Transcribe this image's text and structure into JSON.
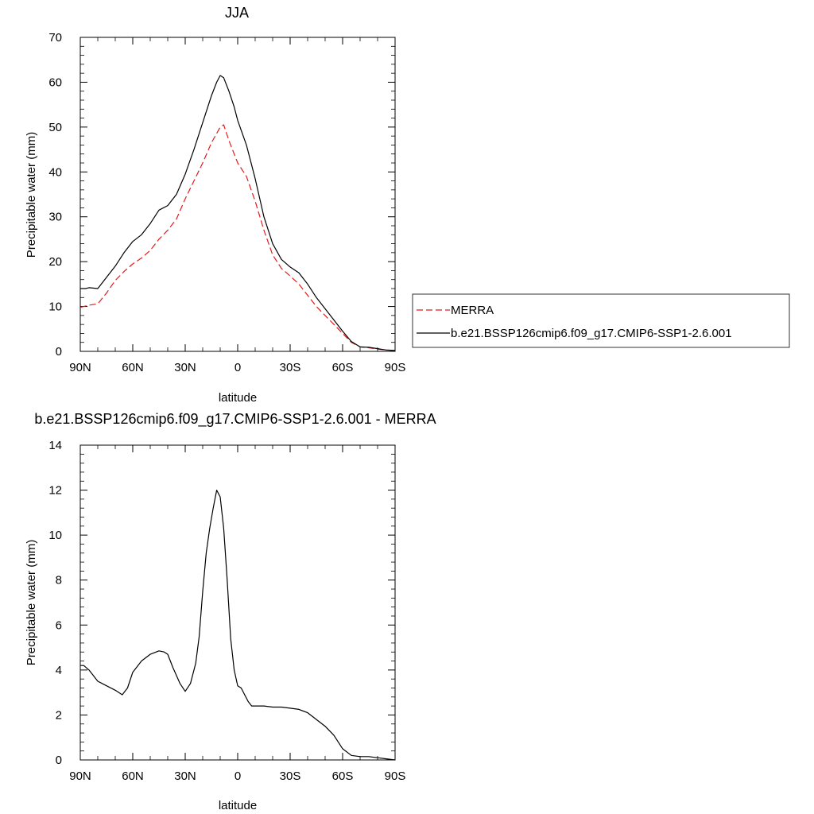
{
  "chart_data": [
    {
      "type": "line",
      "title": "JJA",
      "xlabel": "latitude",
      "ylabel": "Precipitable water (mm)",
      "xlim": [
        90,
        -90
      ],
      "ylim": [
        0,
        70
      ],
      "x_ticks": [
        90,
        60,
        30,
        0,
        -30,
        -60,
        -90
      ],
      "x_tick_labels": [
        "90N",
        "60N",
        "30N",
        "0",
        "30S",
        "60S",
        "90S"
      ],
      "y_ticks": [
        0,
        10,
        20,
        30,
        40,
        50,
        60,
        70
      ],
      "y_tick_labels": [
        "0",
        "10",
        "20",
        "30",
        "40",
        "50",
        "60",
        "70"
      ],
      "grid": false,
      "legend": {
        "placement": "right",
        "entries": [
          {
            "name": "MERRA",
            "color": "#e31a1c",
            "dash": "dashed"
          },
          {
            "name": "b.e21.BSSP126cmip6.f09_g17.CMIP6-SSP1-2.6.001",
            "color": "#000000",
            "dash": "solid"
          }
        ]
      },
      "series": [
        {
          "name": "MERRA",
          "color": "#e31a1c",
          "dash": "dashed",
          "x": [
            90,
            85,
            80,
            75,
            70,
            65,
            60,
            55,
            50,
            45,
            40,
            35,
            30,
            25,
            20,
            15,
            10,
            8,
            5,
            2,
            0,
            -5,
            -10,
            -15,
            -20,
            -25,
            -30,
            -35,
            -40,
            -45,
            -50,
            -55,
            -60,
            -65,
            -70,
            -75,
            -80,
            -85,
            -90
          ],
          "y": [
            9.8,
            10.3,
            10.6,
            13,
            15.8,
            17.8,
            19.5,
            20.8,
            22.5,
            25,
            27,
            29.5,
            34,
            38,
            42,
            46.5,
            50,
            50.5,
            47,
            44,
            42,
            39,
            33.5,
            27,
            21.5,
            18.5,
            16.8,
            15,
            12.5,
            10,
            8,
            6,
            4,
            2,
            1,
            0.8,
            0.5,
            0.3,
            0.2
          ]
        },
        {
          "name": "b.e21.BSSP126cmip6.f09_g17.CMIP6-SSP1-2.6.001",
          "color": "#000000",
          "dash": "solid",
          "x": [
            90,
            87,
            85,
            80,
            75,
            70,
            65,
            60,
            55,
            50,
            45,
            40,
            35,
            30,
            25,
            20,
            15,
            12,
            10,
            8,
            5,
            2,
            0,
            -5,
            -10,
            -15,
            -20,
            -25,
            -30,
            -35,
            -40,
            -45,
            -50,
            -55,
            -60,
            -65,
            -70,
            -75,
            -80,
            -85,
            -90
          ],
          "y": [
            14,
            14,
            14.2,
            14,
            16.5,
            19,
            22,
            24.5,
            26,
            28.5,
            31.5,
            32.5,
            35,
            39.5,
            45,
            51,
            57,
            60,
            61.5,
            61,
            58,
            54.5,
            51.5,
            46,
            38.5,
            30,
            24,
            20.5,
            18.8,
            17.5,
            15,
            12,
            9.5,
            7,
            4.5,
            2.2,
            1,
            0.9,
            0.6,
            0.3,
            0.2
          ]
        }
      ]
    },
    {
      "type": "line",
      "title": "b.e21.BSSP126cmip6.f09_g17.CMIP6-SSP1-2.6.001 - MERRA",
      "xlabel": "latitude",
      "ylabel": "Precipitable water (mm)",
      "xlim": [
        90,
        -90
      ],
      "ylim": [
        0,
        14
      ],
      "x_ticks": [
        90,
        60,
        30,
        0,
        -30,
        -60,
        -90
      ],
      "x_tick_labels": [
        "90N",
        "60N",
        "30N",
        "0",
        "30S",
        "60S",
        "90S"
      ],
      "y_ticks": [
        0,
        2,
        4,
        6,
        8,
        10,
        12,
        14
      ],
      "y_tick_labels": [
        "0",
        "2",
        "4",
        "6",
        "8",
        "10",
        "12",
        "14"
      ],
      "grid": false,
      "series": [
        {
          "color": "#000000",
          "dash": "solid",
          "x": [
            90,
            88,
            85,
            80,
            75,
            70,
            66,
            63,
            60,
            55,
            50,
            45,
            42,
            40,
            37,
            33,
            30,
            27,
            24,
            22,
            20,
            18,
            16,
            14,
            12,
            10,
            8,
            6,
            4,
            2,
            0,
            -2,
            -4,
            -6,
            -8,
            -10,
            -12,
            -15,
            -20,
            -25,
            -30,
            -35,
            -40,
            -45,
            -50,
            -55,
            -60,
            -65,
            -70,
            -72,
            -75,
            -80,
            -85,
            -90
          ],
          "y": [
            4.2,
            4.2,
            4.0,
            3.5,
            3.3,
            3.1,
            2.9,
            3.2,
            3.9,
            4.4,
            4.7,
            4.85,
            4.8,
            4.7,
            4.1,
            3.4,
            3.05,
            3.4,
            4.3,
            5.5,
            7.5,
            9.2,
            10.3,
            11.2,
            12.0,
            11.7,
            10.3,
            8.0,
            5.4,
            4.0,
            3.3,
            3.2,
            2.9,
            2.6,
            2.4,
            2.4,
            2.4,
            2.4,
            2.35,
            2.35,
            2.3,
            2.25,
            2.1,
            1.8,
            1.5,
            1.1,
            0.5,
            0.2,
            0.15,
            0.15,
            0.15,
            0.1,
            0.05,
            0.0
          ]
        }
      ]
    }
  ]
}
